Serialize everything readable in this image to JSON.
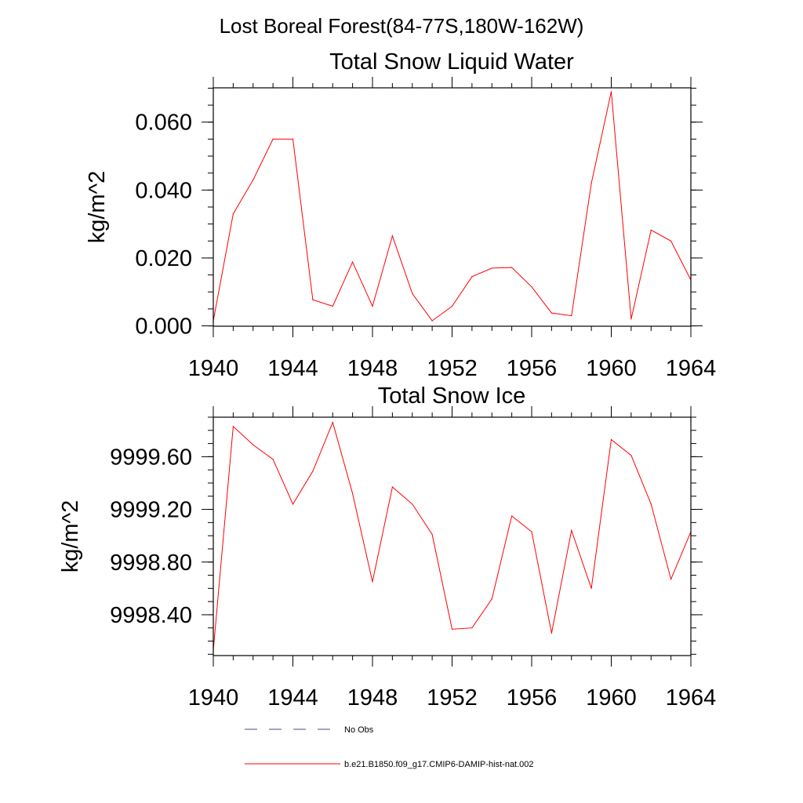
{
  "figure": {
    "title": "Lost Boreal Forest(84-77S,180W-162W)",
    "line_color": "#ff0000",
    "noobs_color": "#4a4a8a"
  },
  "chart_data": [
    {
      "type": "line",
      "title": "Total Snow Liquid Water",
      "ylabel": "kg/m^2",
      "xlabel": "",
      "xlim": [
        1940,
        1964
      ],
      "ylim": [
        -0.0001,
        0.0701
      ],
      "xticks": [
        1940,
        1944,
        1948,
        1952,
        1956,
        1960,
        1964
      ],
      "xtick_labels": [
        "1940",
        "1944",
        "1948",
        "1952",
        "1956",
        "1960",
        "1964"
      ],
      "yticks": [
        0.0,
        0.02,
        0.04,
        0.06
      ],
      "ytick_labels": [
        "0.000",
        "0.020",
        "0.040",
        "0.060"
      ],
      "y_minor_step": 0.005,
      "x_minor_step": 1,
      "grid": false,
      "series": [
        {
          "name": "b.e21.B1850.f09_g17.CMIP6-DAMIP-hist-nat.002",
          "x": [
            1940,
            1941,
            1942,
            1943,
            1944,
            1945,
            1946,
            1947,
            1948,
            1949,
            1950,
            1951,
            1952,
            1953,
            1954,
            1955,
            1956,
            1957,
            1958,
            1959,
            1960,
            1961,
            1962,
            1963,
            1964
          ],
          "values": [
            0.0015,
            0.033,
            0.043,
            0.055,
            0.055,
            0.0077,
            0.0058,
            0.0188,
            0.0058,
            0.0265,
            0.0095,
            0.0015,
            0.0058,
            0.0145,
            0.017,
            0.0172,
            0.0115,
            0.0038,
            0.003,
            0.042,
            0.069,
            0.002,
            0.0282,
            0.025,
            0.0135
          ]
        }
      ]
    },
    {
      "type": "line",
      "title": "Total Snow Ice",
      "ylabel": "kg/m^2",
      "xlabel": "",
      "xlim": [
        1940,
        1964
      ],
      "ylim": [
        9998.09,
        9999.9
      ],
      "xticks": [
        1940,
        1944,
        1948,
        1952,
        1956,
        1960,
        1964
      ],
      "xtick_labels": [
        "1940",
        "1944",
        "1948",
        "1952",
        "1956",
        "1960",
        "1964"
      ],
      "yticks": [
        9998.4,
        9998.8,
        9999.2,
        9999.6
      ],
      "ytick_labels": [
        "9998.40",
        "9998.80",
        "9999.20",
        "9999.60"
      ],
      "y_minor_step": 0.1,
      "x_minor_step": 1,
      "grid": false,
      "series": [
        {
          "name": "b.e21.B1850.f09_g17.CMIP6-DAMIP-hist-nat.002",
          "x": [
            1940,
            1941,
            1942,
            1943,
            1944,
            1945,
            1946,
            1947,
            1948,
            1949,
            1950,
            1951,
            1952,
            1953,
            1954,
            1955,
            1956,
            1957,
            1958,
            1959,
            1960,
            1961,
            1962,
            1963,
            1964
          ],
          "values": [
            9998.13,
            9999.83,
            9999.69,
            9999.58,
            9999.24,
            9999.49,
            9999.86,
            9999.32,
            9998.65,
            9999.37,
            9999.24,
            9999.01,
            9998.29,
            9998.3,
            9998.52,
            9999.15,
            9999.03,
            9998.26,
            9999.04,
            9998.6,
            9999.73,
            9999.61,
            9999.24,
            9998.67,
            9999.03
          ]
        }
      ]
    }
  ],
  "legend": {
    "entries": [
      {
        "label": "No Obs",
        "style": "dashed"
      },
      {
        "label": "b.e21.B1850.f09_g17.CMIP6-DAMIP-hist-nat.002",
        "style": "solid"
      }
    ]
  }
}
